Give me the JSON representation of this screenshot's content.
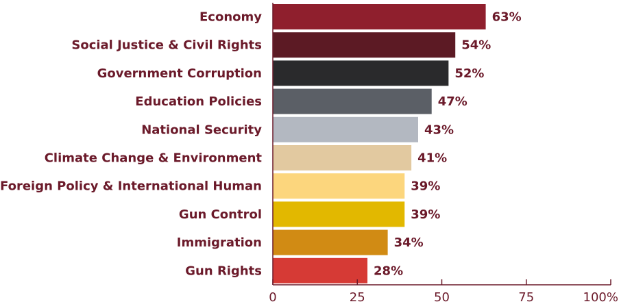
{
  "chart_data": {
    "type": "bar",
    "orientation": "horizontal",
    "categories": [
      "Economy",
      "Social Justice & Civil Rights",
      "Government Corruption",
      "Education Policies",
      "National Security",
      "Climate Change & Environment",
      "Foreign Policy & International Human",
      "Gun Control",
      "Immigration",
      "Gun Rights"
    ],
    "values": [
      63,
      54,
      52,
      47,
      43,
      41,
      39,
      39,
      34,
      28
    ],
    "value_labels": [
      "63%",
      "54%",
      "52%",
      "47%",
      "43%",
      "41%",
      "39%",
      "39%",
      "34%",
      "28%"
    ],
    "colors": [
      "#8f1f2d",
      "#5c1a24",
      "#2a2a2c",
      "#5b5f66",
      "#b3b8c1",
      "#e2c9a0",
      "#fcd67d",
      "#e2b800",
      "#d18b14",
      "#d63a35"
    ],
    "xlim": [
      0,
      100
    ],
    "xticks": [
      0,
      25,
      50,
      75,
      100
    ],
    "xtick_labels": [
      "0",
      "25",
      "50",
      "75",
      "100%"
    ],
    "grid": false,
    "title": "",
    "xlabel": "",
    "ylabel": ""
  }
}
